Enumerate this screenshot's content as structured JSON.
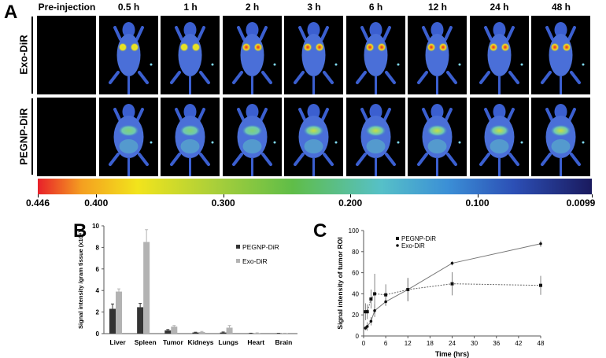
{
  "panel_a": {
    "letter": "A",
    "columns": [
      "Pre-injection",
      "0.5 h",
      "1 h",
      "2 h",
      "3 h",
      "6 h",
      "12 h",
      "24 h",
      "48 h"
    ],
    "rows": [
      "Exo-DiR",
      "PEGNP-DiR"
    ],
    "colorbar": {
      "labels": [
        "0.446",
        "0.400",
        "0.300",
        "0.200",
        "0.100",
        "0.0099"
      ],
      "values": [
        0.446,
        0.4,
        0.3,
        0.2,
        0.1,
        0.0099
      ]
    }
  },
  "panel_b": {
    "letter": "B"
  },
  "panel_c": {
    "letter": "C"
  },
  "chart_data": [
    {
      "type": "bar",
      "title": "",
      "xlabel": "",
      "ylabel": "Signal intensity /gram tissue (x10⁴)",
      "categories": [
        "Liver",
        "Spleen",
        "Tumor",
        "Kidneys",
        "Lungs",
        "Heart",
        "Brain"
      ],
      "ylim": [
        0,
        10
      ],
      "yticks": [
        "0",
        "2",
        "4",
        "6",
        "8",
        "10"
      ],
      "legend_position": "top-right",
      "series": [
        {
          "name": "PEGNP-DiR",
          "color": "#333333",
          "values": [
            2.3,
            2.45,
            0.3,
            0.1,
            0.1,
            0.03,
            0.02
          ],
          "errors": [
            0.45,
            0.35,
            0.08,
            0.03,
            0.05,
            0.01,
            0.01
          ]
        },
        {
          "name": "Exo-DiR",
          "color": "#b3b3b3",
          "values": [
            3.9,
            8.5,
            0.65,
            0.15,
            0.55,
            0.05,
            0.03
          ],
          "errors": [
            0.25,
            1.15,
            0.1,
            0.05,
            0.2,
            0.02,
            0.01
          ]
        }
      ]
    },
    {
      "type": "line",
      "title": "",
      "xlabel": "Time (hrs)",
      "ylabel": "Signal intensity of tumor ROI",
      "xlim": [
        0,
        48
      ],
      "ylim": [
        0,
        100
      ],
      "xticks": [
        "0",
        "6",
        "12",
        "18",
        "24",
        "30",
        "36",
        "42",
        "48"
      ],
      "yticks": [
        "0",
        "20",
        "40",
        "60",
        "80",
        "100"
      ],
      "legend_position": "top-left",
      "x": [
        0.5,
        1,
        2,
        3,
        6,
        12,
        24,
        48
      ],
      "series": [
        {
          "name": "PEGNP-DiR",
          "marker": "square",
          "line": "dotted",
          "values": [
            23,
            23,
            35,
            40,
            39,
            44,
            49.5,
            48
          ],
          "errors": [
            8,
            7,
            9,
            19,
            10,
            11,
            11,
            9
          ]
        },
        {
          "name": "Exo-DiR",
          "marker": "circle",
          "line": "solid",
          "values": [
            7.5,
            9,
            14,
            24,
            32.5,
            44,
            69,
            87.5
          ],
          "errors": [
            2,
            4,
            4,
            6,
            4,
            11,
            2,
            3
          ]
        }
      ]
    }
  ]
}
